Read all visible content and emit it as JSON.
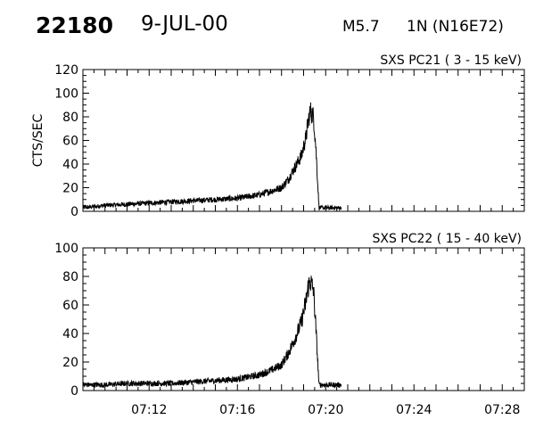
{
  "header": {
    "event_id": "22180",
    "date": "9-JUL-00",
    "flare_class": "M5.7",
    "location": "1N (N16E72)"
  },
  "colors": {
    "line": "#000000",
    "background": "#ffffff"
  },
  "chart_data": [
    {
      "type": "line",
      "title": "SXS PC21  (  3 - 15 keV)",
      "xlabel": "",
      "ylabel": "CTS/SEC",
      "xlim": [
        "07:09",
        "07:29"
      ],
      "ylim": [
        0,
        120
      ],
      "yticks": [
        0,
        20,
        40,
        60,
        80,
        100,
        120
      ],
      "xticks": [
        "07:12",
        "07:16",
        "07:20",
        "07:24",
        "07:28"
      ],
      "grid": false,
      "series": [
        {
          "x": [
            "07:09.0",
            "07:10.0",
            "07:11.0",
            "07:12.0",
            "07:13.0",
            "07:14.0",
            "07:15.0",
            "07:16.0",
            "07:17.0",
            "07:17.5",
            "07:18.0",
            "07:18.3",
            "07:18.6",
            "07:18.9",
            "07:19.1",
            "07:19.2",
            "07:19.3",
            "07:19.45",
            "07:19.55",
            "07:19.7",
            "07:20.2",
            "07:20.7"
          ],
          "y": [
            3,
            5,
            6,
            7,
            8,
            9,
            10,
            11,
            14,
            17,
            20,
            27,
            37,
            47,
            62,
            75,
            85,
            80,
            55,
            3,
            3,
            3
          ]
        }
      ]
    },
    {
      "type": "line",
      "title": "SXS PC22  ( 15 - 40 keV)",
      "xlabel": "",
      "ylabel": "",
      "xlim": [
        "07:09",
        "07:29"
      ],
      "ylim": [
        0,
        100
      ],
      "yticks": [
        0,
        20,
        40,
        60,
        80,
        100
      ],
      "xticks": [
        "07:12",
        "07:16",
        "07:20",
        "07:24",
        "07:28"
      ],
      "grid": false,
      "series": [
        {
          "x": [
            "07:09.0",
            "07:10.0",
            "07:11.0",
            "07:12.0",
            "07:13.0",
            "07:14.0",
            "07:15.0",
            "07:16.0",
            "07:17.0",
            "07:17.5",
            "07:18.0",
            "07:18.3",
            "07:18.6",
            "07:18.9",
            "07:19.1",
            "07:19.2",
            "07:19.3",
            "07:19.45",
            "07:19.55",
            "07:19.7",
            "07:20.2",
            "07:20.7"
          ],
          "y": [
            4,
            4,
            5,
            5,
            5,
            6,
            7,
            8,
            11,
            14,
            18,
            26,
            36,
            48,
            62,
            72,
            77,
            70,
            45,
            4,
            4,
            4
          ]
        }
      ]
    }
  ]
}
